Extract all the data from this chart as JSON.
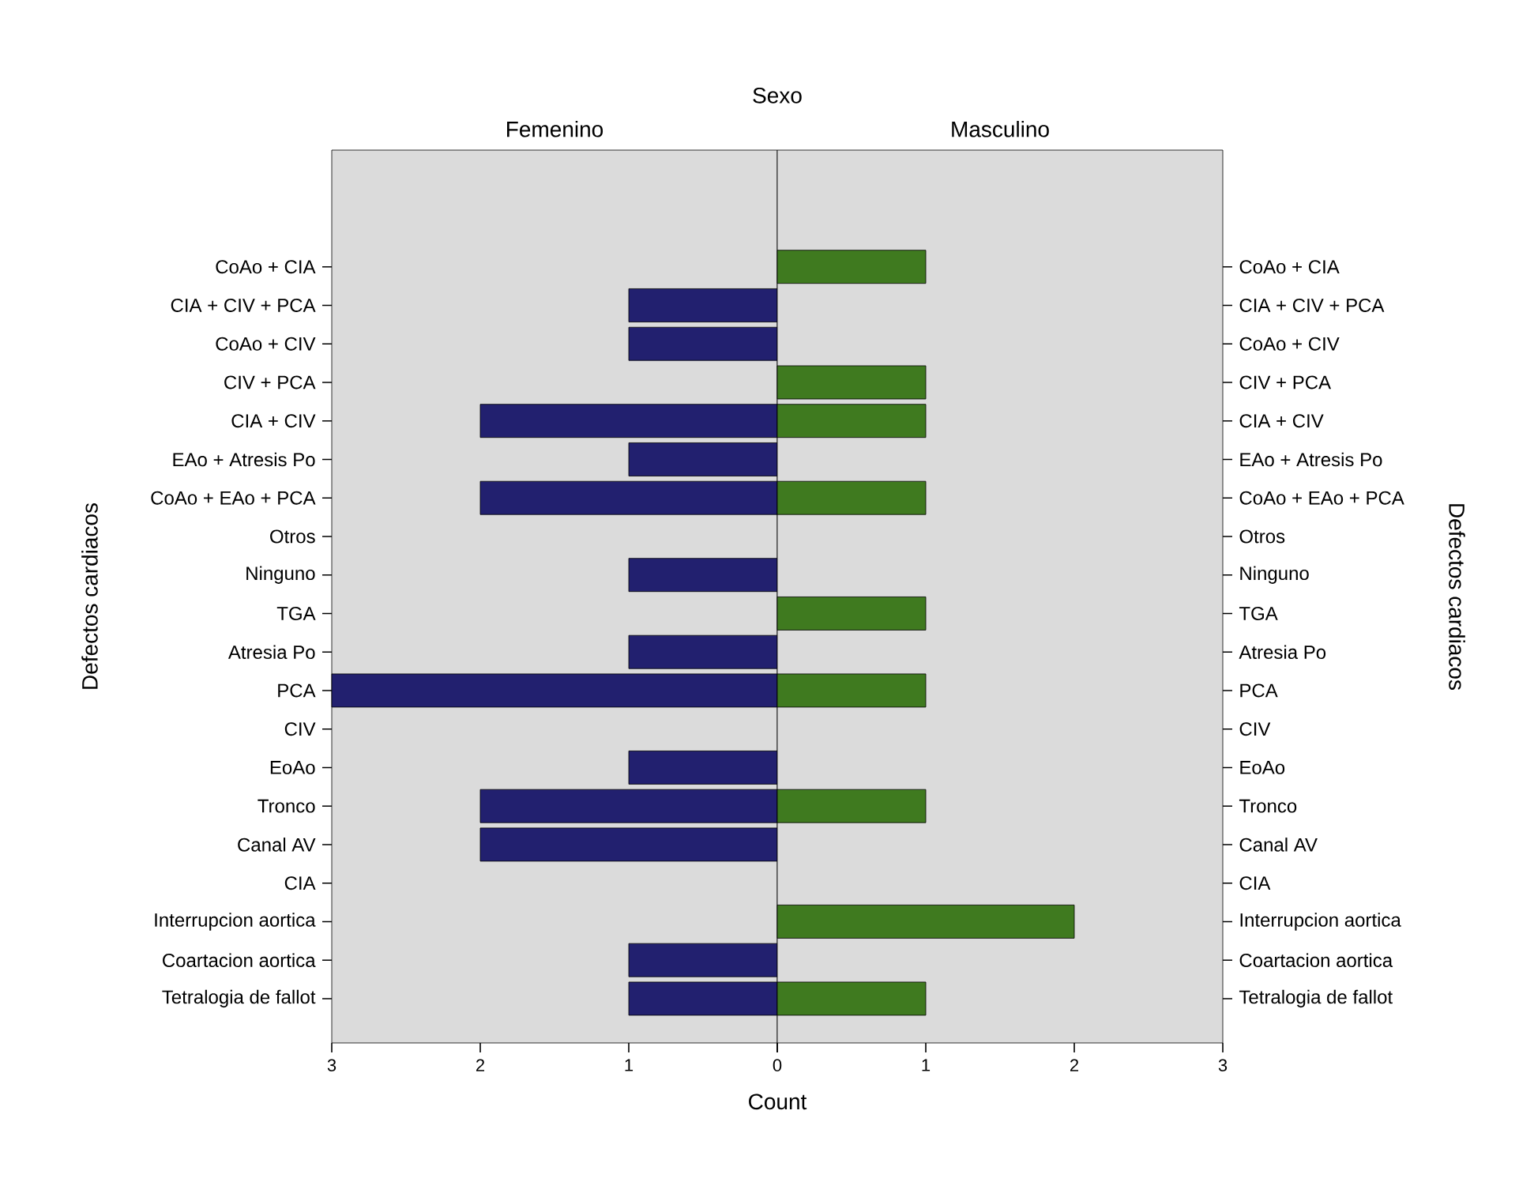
{
  "chart_data": [
    {
      "type": "bar",
      "orientation": "horizontal",
      "title": "Femenino",
      "ylabel": "Defectos cardiacos",
      "xlabel": "Count",
      "annotations": [
        "Sexo"
      ],
      "categories": [
        "CoAo + CIA",
        "CIA + CIV + PCA",
        "CoAo + CIV",
        "CIV + PCA",
        "CIA + CIV",
        "EAo + Atresis Po",
        "CoAo + EAo + PCA",
        "Otros",
        "Ninguno",
        "TGA",
        "Atresia Po",
        "PCA",
        "CIV",
        "EoAo",
        "Tronco",
        "Canal AV",
        "CIA",
        "Interrupcion aortica",
        "Coartacion aortica",
        "Tetralogia de fallot"
      ],
      "values": [
        0,
        1,
        1,
        0,
        2,
        1,
        2,
        0,
        1,
        0,
        1,
        3,
        0,
        1,
        2,
        2,
        0,
        0,
        1,
        1
      ],
      "color": "#22206f",
      "xlim": [
        3,
        0
      ],
      "xticks": [
        3,
        2,
        1,
        0
      ]
    },
    {
      "type": "bar",
      "orientation": "horizontal",
      "title": "Masculino",
      "y2label": "Defectos cardiacos",
      "categories": [
        "CoAo + CIA",
        "CIA + CIV + PCA",
        "CoAo + CIV",
        "CIV + PCA",
        "CIA + CIV",
        "EAo + Atresis Po",
        "CoAo + EAo + PCA",
        "Otros",
        "Ninguno",
        "TGA",
        "Atresia Po",
        "PCA",
        "CIV",
        "EoAo",
        "Tronco",
        "Canal AV",
        "CIA",
        "Interrupcion aortica",
        "Coartacion aortica",
        "Tetralogia de fallot"
      ],
      "values": [
        1,
        0,
        0,
        1,
        1,
        0,
        1,
        0,
        0,
        1,
        0,
        1,
        0,
        0,
        1,
        0,
        0,
        2,
        0,
        1
      ],
      "color": "#3f7a1f",
      "xlim": [
        0,
        3
      ],
      "xticks": [
        {
          "value": 0,
          "label": null
        },
        1,
        2,
        3
      ]
    }
  ]
}
